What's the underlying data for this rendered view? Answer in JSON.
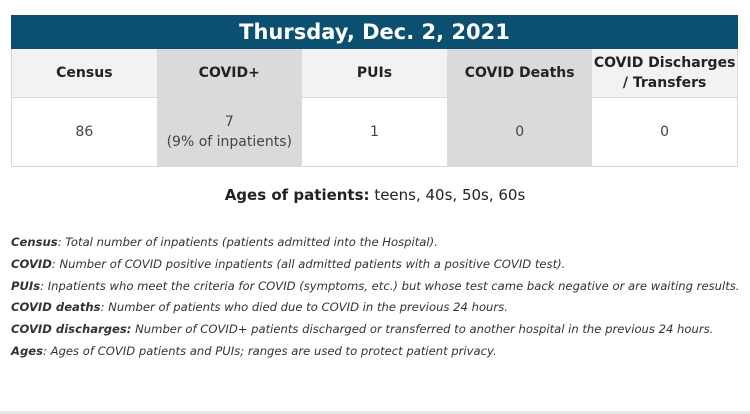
{
  "title": "Thursday, Dec. 2, 2021",
  "columns": [
    "Census",
    "COVID+",
    "PUIs",
    "COVID Deaths",
    "COVID Discharges / Transfers"
  ],
  "values": {
    "census": "86",
    "covid_count": "7",
    "covid_percent": "(9% of inpatients)",
    "puis": "1",
    "deaths": "0",
    "discharges": "0"
  },
  "ages": {
    "label": "Ages of patients:",
    "value": "teens, 40s, 50s, 60s"
  },
  "definitions": [
    {
      "term": "Census",
      "text": ": Total number of inpatients (patients admitted into the Hospital)."
    },
    {
      "term": "COVID",
      "text": ": Number of COVID positive inpatients (all admitted patients with a positive COVID test)."
    },
    {
      "term": "PUIs",
      "text": ": Inpatients who meet the criteria for COVID (symptoms, etc.) but whose test came back negative or are waiting results."
    },
    {
      "term": "COVID deaths",
      "text": ": Number of patients who died due to COVID in the previous 24 hours."
    },
    {
      "term": "COVID discharges:",
      "text": " Number of COVID+ patients discharged or transferred to another hospital in the previous 24 hours."
    },
    {
      "term": "Ages",
      "text": ": Ages of COVID patients and PUIs; ranges are used to protect patient privacy."
    }
  ]
}
